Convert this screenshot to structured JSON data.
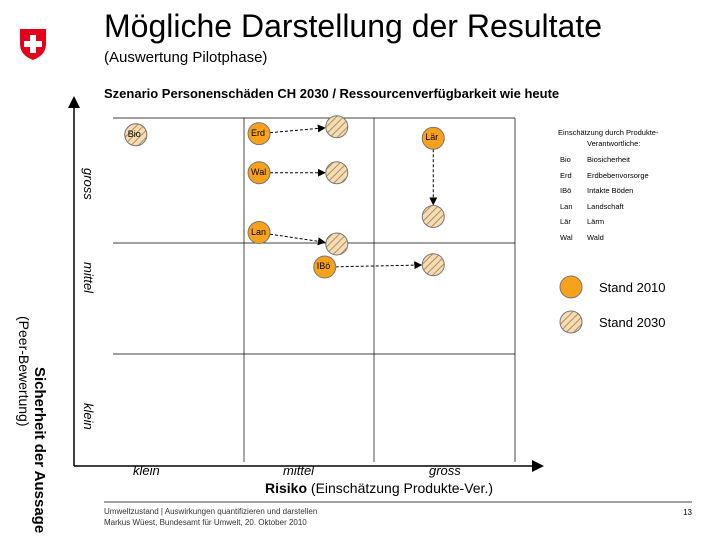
{
  "slide": {
    "title": "Mögliche Darstellung der Resultate",
    "subtitle": "(Auswertung Pilotphase)",
    "scenario": "Szenario Personenschäden CH 2030 / Ressourcenverfügbarkeit wie heute",
    "footer_line1": "Umweltzustand | Auswirkungen quantifizieren und darstellen",
    "footer_line2": "Markus Wüest, Bundesamt für Umwelt, 20. Oktober 2010",
    "page_number": "13"
  },
  "colors": {
    "orange": "#f7a21a",
    "hatch_base": "#f3ddb8",
    "hatch_line": "#b88c4e",
    "grid": "#000000"
  },
  "chart_data": {
    "type": "scatter",
    "xlabel_bold": "Risiko",
    "xlabel_rest": " (Einschätzung Produkte-Ver.)",
    "ylabel": "Sicherheit der Aussage",
    "ylabel_sub": "(Peer-Bewertung)",
    "x_categories": [
      "klein",
      "mittel",
      "gross"
    ],
    "y_categories": [
      "klein",
      "mittel",
      "gross"
    ],
    "legend": {
      "header_line1": "Einschätzung durch Produkte-",
      "header_line2": "Verantwortliche:",
      "entries": [
        {
          "abbr": "Bio",
          "full": "Biosicherheit"
        },
        {
          "abbr": "Erd",
          "full": "Erdbebenvorsorge"
        },
        {
          "abbr": "IBö",
          "full": "Intakte Böden"
        },
        {
          "abbr": "Lan",
          "full": "Landschaft"
        },
        {
          "abbr": "Lär",
          "full": "Lärm"
        },
        {
          "abbr": "Wal",
          "full": "Wald"
        }
      ],
      "stand_2010": "Stand 2010",
      "stand_2030": "Stand 2030"
    },
    "points_2010": [
      {
        "label": "Bio",
        "x": 0.17,
        "y": 2.88
      },
      {
        "label": "Erd",
        "x": 1.09,
        "y": 2.89
      },
      {
        "label": "Lär",
        "x": 2.39,
        "y": 2.85
      },
      {
        "label": "Wal",
        "x": 1.09,
        "y": 2.55
      },
      {
        "label": "Lan",
        "x": 1.09,
        "y": 2.03
      },
      {
        "label": "IBö",
        "x": 1.58,
        "y": 1.73
      }
    ],
    "points_2030": [
      {
        "label": "Bio",
        "x": 0.17,
        "y": 2.88
      },
      {
        "label": "Erd",
        "x": 1.67,
        "y": 2.95
      },
      {
        "label": "Lär",
        "x": 2.39,
        "y": 2.17
      },
      {
        "label": "Wal",
        "x": 1.67,
        "y": 2.55
      },
      {
        "label": "Lan",
        "x": 1.67,
        "y": 1.93
      },
      {
        "label": "IBö",
        "x": 2.39,
        "y": 1.75
      }
    ]
  }
}
